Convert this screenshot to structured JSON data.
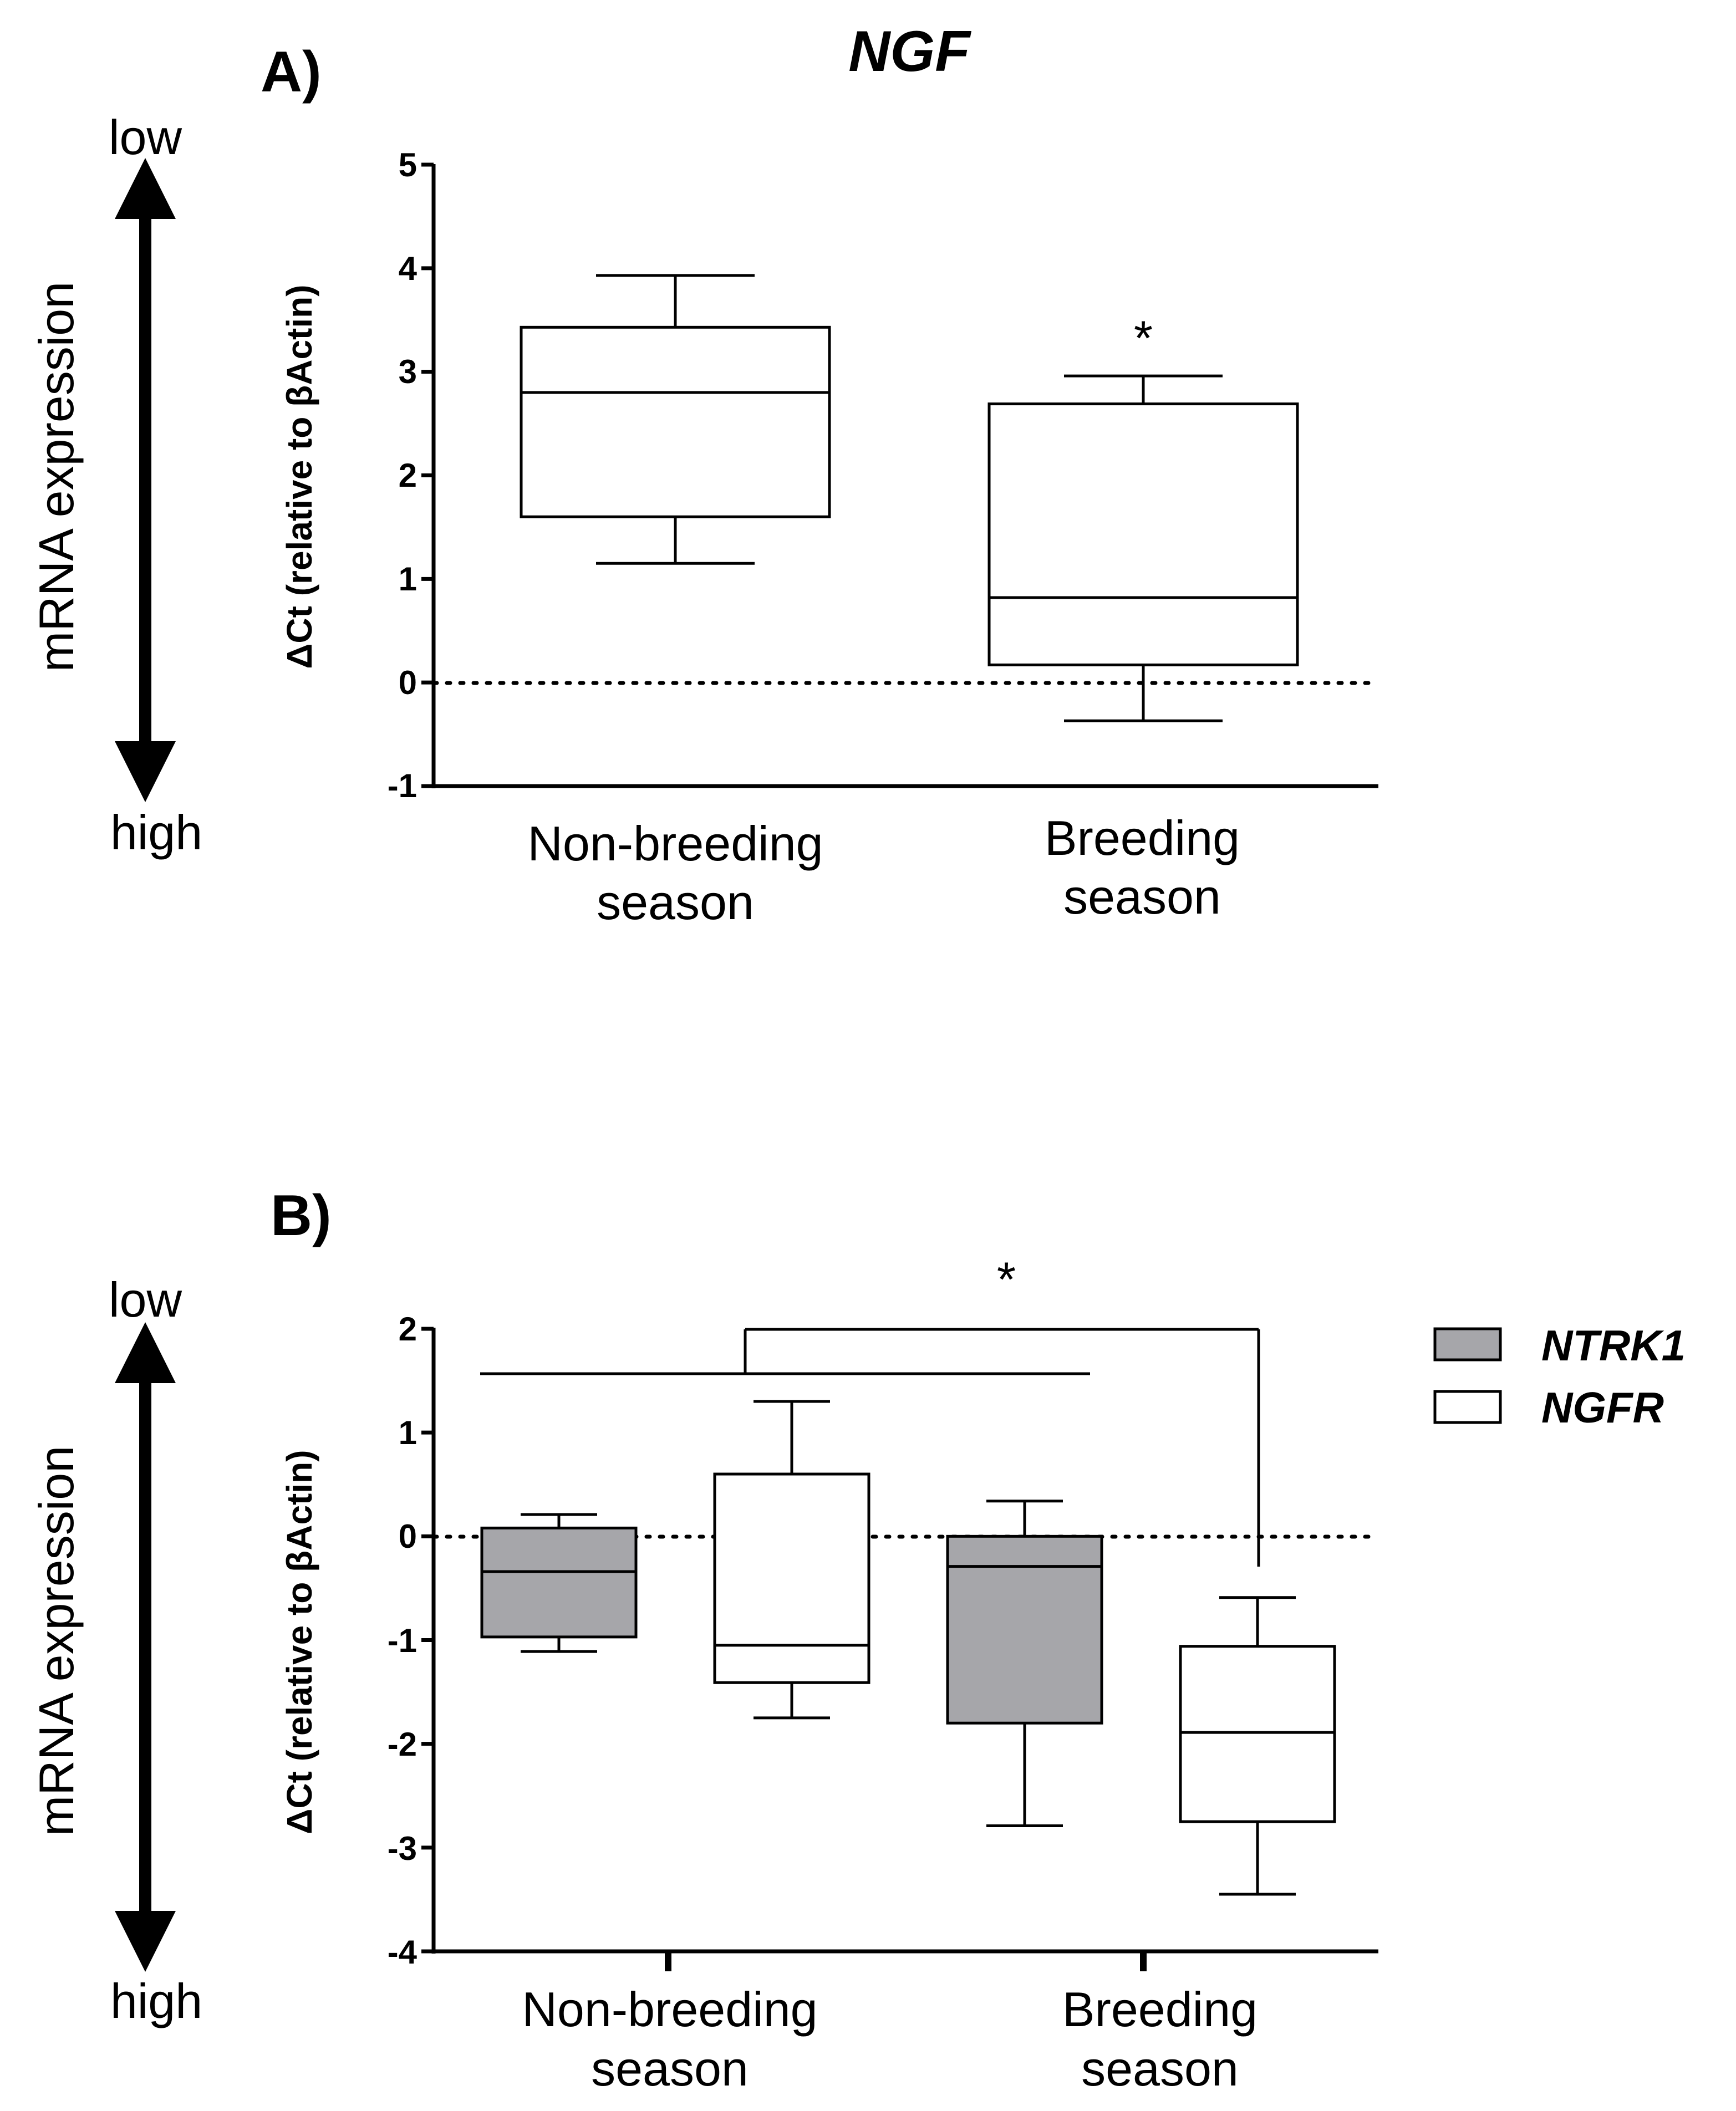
{
  "chart_data": [
    {
      "type": "box",
      "panel_label": "A)",
      "title": "NGF",
      "ylabel": "ΔCt (relative to βActin)",
      "ylim": [
        -1,
        5
      ],
      "yticks": [
        "5",
        "4",
        "3",
        "2",
        "1",
        "0",
        "-1"
      ],
      "reference_line": 0,
      "side_annotation": {
        "label": "mRNA expression",
        "top": "low",
        "bottom": "high"
      },
      "categories": [
        {
          "label_lines": [
            "Non-breeding",
            "season"
          ]
        },
        {
          "label_lines": [
            "Breeding",
            "season"
          ]
        }
      ],
      "series": [
        {
          "name": "NGF",
          "color": "#ffffff",
          "boxes": [
            {
              "category": "Non-breeding season",
              "min": 1.15,
              "q1": 1.6,
              "median": 2.8,
              "q3": 3.43,
              "max": 3.93,
              "significance": ""
            },
            {
              "category": "Breeding season",
              "min": -0.37,
              "q1": 0.17,
              "median": 0.82,
              "q3": 2.69,
              "max": 2.96,
              "significance": "*"
            }
          ]
        }
      ]
    },
    {
      "type": "box",
      "panel_label": "B)",
      "ylabel": "ΔCt (relative to βActin)",
      "ylim": [
        -4,
        2
      ],
      "yticks": [
        "2",
        "1",
        "0",
        "-1",
        "-2",
        "-3",
        "-4"
      ],
      "reference_line": 0,
      "side_annotation": {
        "label": "mRNA expression",
        "top": "low",
        "bottom": "high"
      },
      "categories": [
        {
          "label_lines": [
            "Non-breeding",
            "season"
          ]
        },
        {
          "label_lines": [
            "Breeding",
            "season"
          ]
        }
      ],
      "legend": [
        {
          "label": "NTRK1",
          "color": "#a6a6aa"
        },
        {
          "label": "NGFR",
          "color": "#ffffff"
        }
      ],
      "series": [
        {
          "name": "NTRK1",
          "color": "#a6a6aa",
          "boxes": [
            {
              "category": "Non-breeding season",
              "min": -1.11,
              "q1": -0.97,
              "median": -0.34,
              "q3": 0.08,
              "max": 0.21
            },
            {
              "category": "Breeding season",
              "min": -2.79,
              "q1": -1.8,
              "median": -0.29,
              "q3": 0.0,
              "max": 0.34
            }
          ]
        },
        {
          "name": "NGFR",
          "color": "#ffffff",
          "boxes": [
            {
              "category": "Non-breeding season",
              "min": -1.75,
              "q1": -1.41,
              "median": -1.05,
              "q3": 0.6,
              "max": 1.3
            },
            {
              "category": "Breeding season",
              "min": -3.45,
              "q1": -2.75,
              "median": -1.89,
              "q3": -1.06,
              "max": -0.59
            }
          ]
        }
      ],
      "significance": {
        "label": "*",
        "between": "first three boxes vs Breeding-season NGFR"
      }
    }
  ]
}
